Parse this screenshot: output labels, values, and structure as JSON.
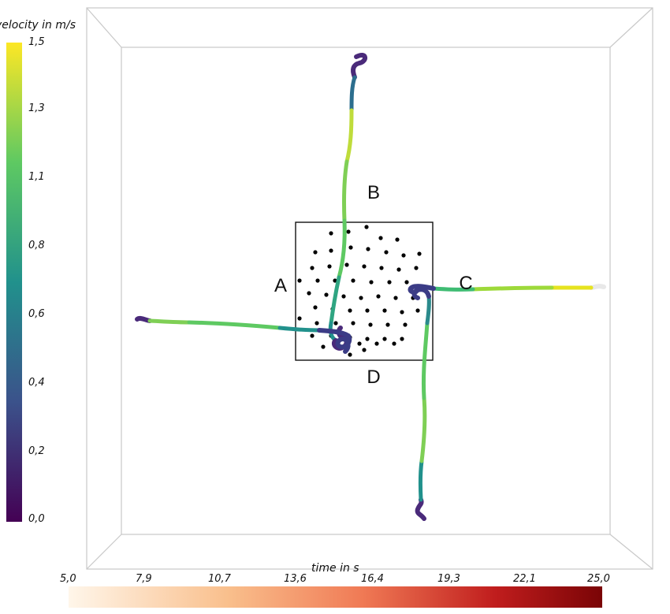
{
  "velocity_legend": {
    "title": "velocity in m/s",
    "ticks": [
      "1,5",
      "1,3",
      "1,1",
      "0,8",
      "0,6",
      "0,4",
      "0,2",
      "0,0"
    ]
  },
  "time_legend": {
    "title": "time in s",
    "ticks": [
      "5,0",
      "7,9",
      "10,7",
      "13,6",
      "16,4",
      "19,3",
      "22,1",
      "25,0"
    ]
  },
  "regions": {
    "a": "A",
    "b": "B",
    "c": "C",
    "d": "D"
  },
  "colors": {
    "viridis": [
      "#440154",
      "#3b528b",
      "#21918c",
      "#5ec962",
      "#fde725"
    ],
    "time_ramp": [
      "#fff6ea",
      "#f9bf8c",
      "#f07a55",
      "#c01d1d",
      "#7a0406"
    ],
    "box_edges": "#c9c9c9",
    "obstacle": "#000000"
  }
}
